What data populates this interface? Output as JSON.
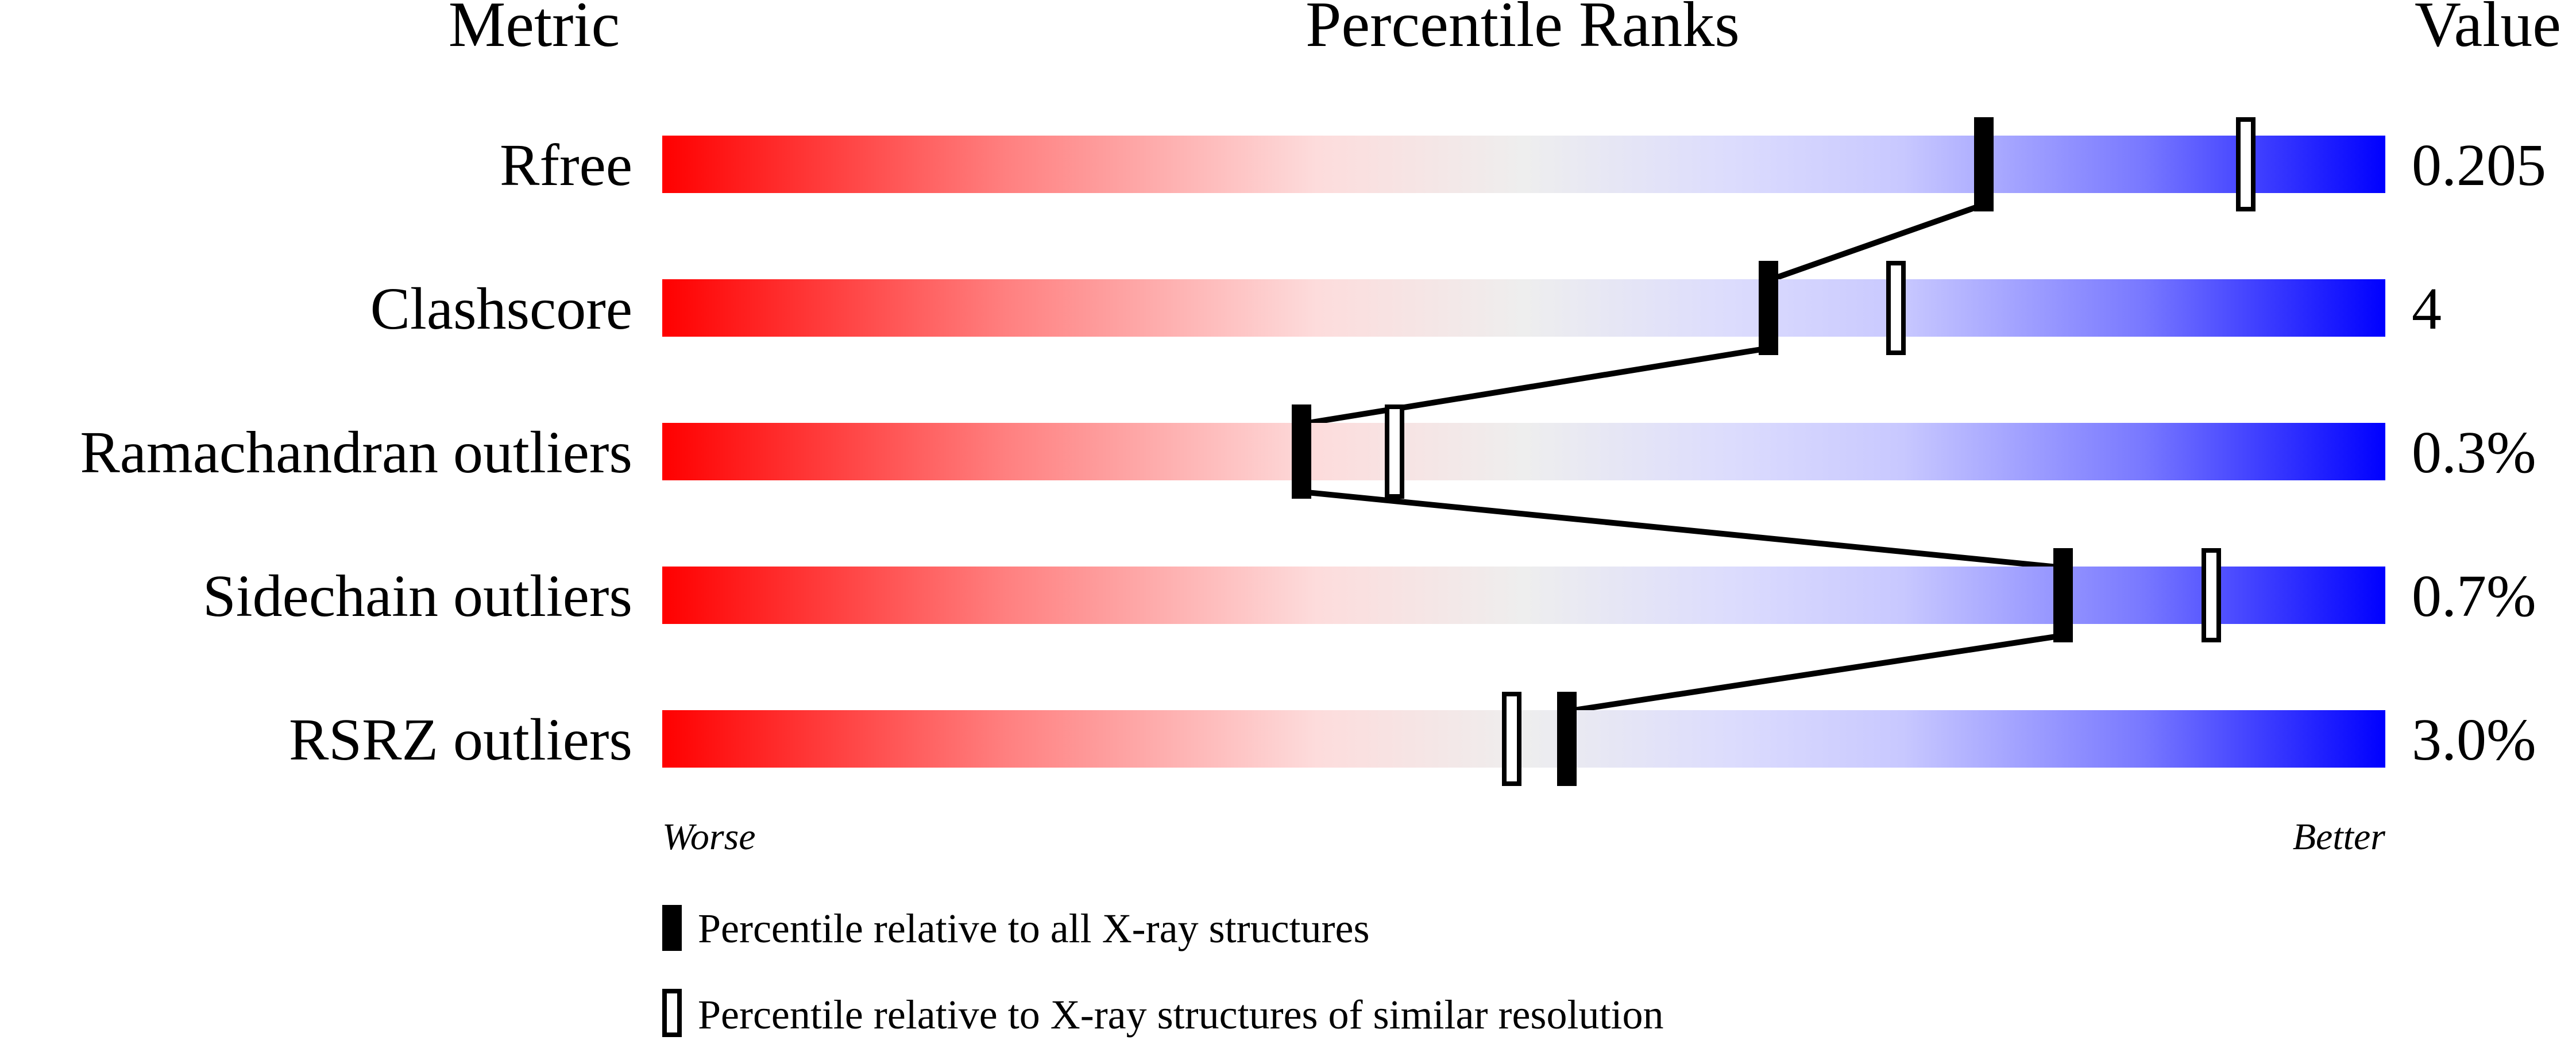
{
  "chart_data": {
    "type": "percentile-slider",
    "headers": {
      "metric": "Metric",
      "ranks": "Percentile Ranks",
      "value": "Value"
    },
    "xlim": [
      0,
      100
    ],
    "axis_labels": {
      "worse": "Worse",
      "better": "Better"
    },
    "gradient_colors": [
      "#ff0000",
      "#eeeeee",
      "#0000ff"
    ],
    "rows": [
      {
        "metric": "Rfree",
        "value": "0.205",
        "percentile_all": 76.7,
        "percentile_similar": 91.9
      },
      {
        "metric": "Clashscore",
        "value": "4",
        "percentile_all": 64.2,
        "percentile_similar": 71.6
      },
      {
        "metric": "Ramachandran outliers",
        "value": "0.3%",
        "percentile_all": 37.1,
        "percentile_similar": 42.5
      },
      {
        "metric": "Sidechain outliers",
        "value": "0.7%",
        "percentile_all": 81.3,
        "percentile_similar": 89.9
      },
      {
        "metric": "RSRZ outliers",
        "value": "3.0%",
        "percentile_all": 52.5,
        "percentile_similar": 49.3
      }
    ],
    "legend": [
      {
        "marker": "filled",
        "label": "Percentile relative to all X-ray structures"
      },
      {
        "marker": "open",
        "label": "Percentile relative to X-ray structures of similar resolution"
      }
    ]
  }
}
